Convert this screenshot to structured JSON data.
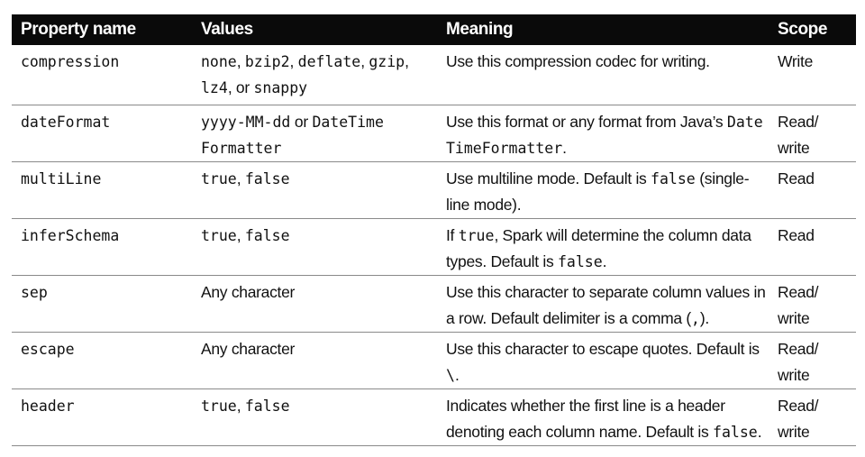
{
  "table": {
    "headers": [
      "Property name",
      "Values",
      "Meaning",
      "Scope"
    ],
    "rows": [
      {
        "property": "compression",
        "values": [
          {
            "t": "none",
            "m": true
          },
          {
            "t": ", ",
            "m": false
          },
          {
            "t": "bzip2",
            "m": true
          },
          {
            "t": ", ",
            "m": false
          },
          {
            "t": "deflate",
            "m": true
          },
          {
            "t": ", ",
            "m": false
          },
          {
            "t": "gzip",
            "m": true
          },
          {
            "t": ", ",
            "m": false
          },
          {
            "t": "lz4",
            "m": true
          },
          {
            "t": ", or ",
            "m": false
          },
          {
            "t": "snappy",
            "m": true
          }
        ],
        "meaning": [
          {
            "t": "Use this compression codec for writing.",
            "m": false
          }
        ],
        "scope": "Write"
      },
      {
        "property": "dateFormat",
        "values": [
          {
            "t": "yyyy-MM-dd",
            "m": true
          },
          {
            "t": " or ",
            "m": false
          },
          {
            "t": "DateTime Formatter",
            "m": true
          }
        ],
        "meaning": [
          {
            "t": "Use this format or any format from Java’s ",
            "m": false
          },
          {
            "t": "Date TimeFormatter",
            "m": true
          },
          {
            "t": ".",
            "m": false
          }
        ],
        "scope": "Read/ write"
      },
      {
        "property": "multiLine",
        "values": [
          {
            "t": "true",
            "m": true
          },
          {
            "t": ", ",
            "m": false
          },
          {
            "t": "false",
            "m": true
          }
        ],
        "meaning": [
          {
            "t": "Use multiline mode. Default is ",
            "m": false
          },
          {
            "t": "false",
            "m": true
          },
          {
            "t": " (single-line mode).",
            "m": false
          }
        ],
        "scope": "Read"
      },
      {
        "property": "inferSchema",
        "values": [
          {
            "t": "true",
            "m": true
          },
          {
            "t": ", ",
            "m": false
          },
          {
            "t": "false",
            "m": true
          }
        ],
        "meaning": [
          {
            "t": "If ",
            "m": false
          },
          {
            "t": "true",
            "m": true
          },
          {
            "t": ", Spark will determine the column data types. Default is ",
            "m": false
          },
          {
            "t": "false",
            "m": true
          },
          {
            "t": ".",
            "m": false
          }
        ],
        "scope": "Read"
      },
      {
        "property": "sep",
        "values": [
          {
            "t": "Any character",
            "m": false
          }
        ],
        "meaning": [
          {
            "t": "Use this character to separate column values in a row. Default delimiter is a comma (",
            "m": false
          },
          {
            "t": ",",
            "m": true
          },
          {
            "t": ").",
            "m": false
          }
        ],
        "scope": "Read/ write"
      },
      {
        "property": "escape",
        "values": [
          {
            "t": "Any character",
            "m": false
          }
        ],
        "meaning": [
          {
            "t": "Use this character to escape quotes. Default is ",
            "m": false
          },
          {
            "t": "\\",
            "m": true
          },
          {
            "t": ".",
            "m": false
          }
        ],
        "scope": "Read/ write"
      },
      {
        "property": "header",
        "values": [
          {
            "t": "true",
            "m": true
          },
          {
            "t": ", ",
            "m": false
          },
          {
            "t": "false",
            "m": true
          }
        ],
        "meaning": [
          {
            "t": "Indicates whether the first line is a header denoting each column name. Default is ",
            "m": false
          },
          {
            "t": "false",
            "m": true
          },
          {
            "t": ".",
            "m": false
          }
        ],
        "scope": "Read/ write"
      }
    ]
  }
}
